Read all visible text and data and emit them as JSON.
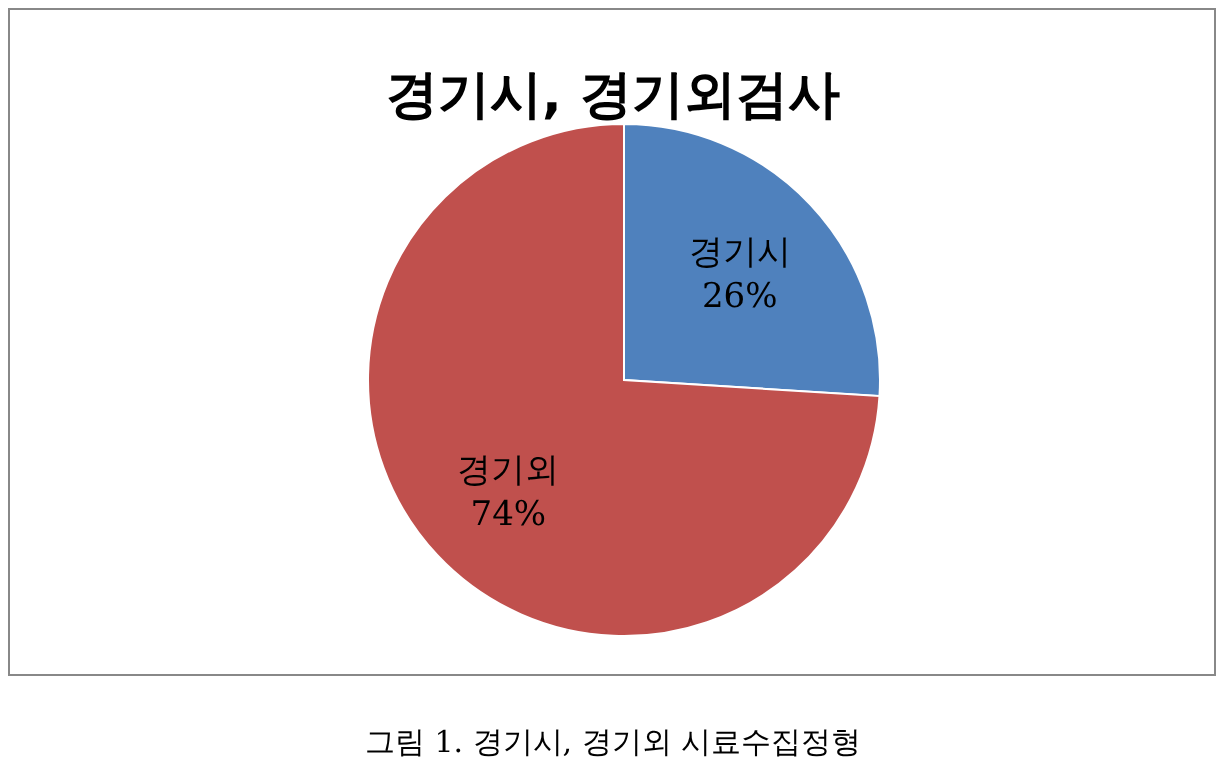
{
  "chart_data": {
    "type": "pie",
    "title": "경기시, 경기외검사",
    "categories": [
      "경기시",
      "경기외"
    ],
    "values": [
      26,
      74
    ],
    "colors": [
      "#4f81bd",
      "#c0504d"
    ],
    "value_labels": [
      "26%",
      "74%"
    ],
    "legend": false,
    "annotations": [
      "그림 1. 경기시, 경기외 시료수집정형"
    ]
  }
}
